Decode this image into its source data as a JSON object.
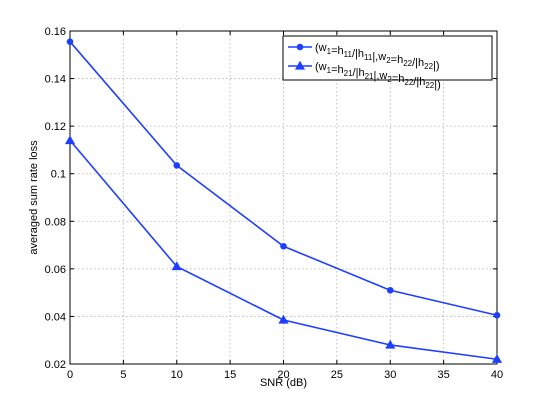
{
  "chart_data": {
    "type": "line",
    "title": "",
    "xlabel": "SNR (dB)",
    "ylabel": "averaged sum rate loss",
    "xlim": [
      0,
      40
    ],
    "ylim": [
      0.02,
      0.16
    ],
    "x_ticks": [
      "0",
      "5",
      "10",
      "15",
      "20",
      "25",
      "30",
      "35",
      "40"
    ],
    "y_ticks": [
      "0.02",
      "0.04",
      "0.06",
      "0.08",
      "0.1",
      "0.12",
      "0.14",
      "0.16"
    ],
    "grid": true,
    "legend_position": "top-right",
    "x": [
      0,
      10,
      20,
      30,
      40
    ],
    "series": [
      {
        "name": "(w1=h11/|h11|,w2=h22/|h22|)",
        "marker": "circle",
        "color": "#1f3fff",
        "values": [
          0.1555,
          0.1035,
          0.0695,
          0.051,
          0.0405
        ]
      },
      {
        "name": "(w1=h21/|h21|,w2=h22/|h22|)",
        "marker": "triangle",
        "color": "#1f3fff",
        "values": [
          0.114,
          0.061,
          0.0385,
          0.028,
          0.022
        ]
      }
    ]
  }
}
